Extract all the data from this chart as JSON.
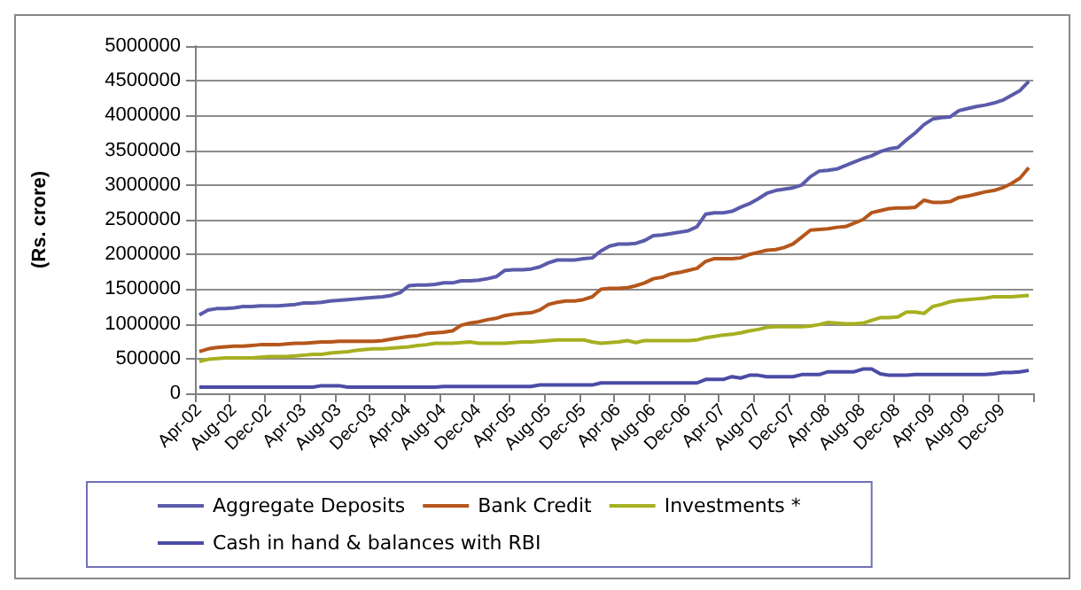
{
  "chart_data": {
    "type": "line",
    "ylabel": "(Rs. crore)",
    "categories": [
      "Apr-02",
      null,
      null,
      null,
      "Aug-02",
      null,
      null,
      null,
      "Dec-02",
      null,
      null,
      null,
      "Apr-03",
      null,
      null,
      null,
      "Aug-03",
      null,
      null,
      null,
      "Dec-03",
      null,
      null,
      null,
      "Apr-04",
      null,
      null,
      null,
      "Aug-04",
      null,
      null,
      null,
      "Dec-04",
      null,
      null,
      null,
      "Apr-05",
      null,
      null,
      null,
      "Aug-05",
      null,
      null,
      null,
      "Dec-05",
      null,
      null,
      null,
      "Apr-06",
      null,
      null,
      null,
      "Aug-06",
      null,
      null,
      null,
      "Dec-06",
      null,
      null,
      null,
      "Apr-07",
      null,
      null,
      null,
      "Aug-07",
      null,
      null,
      null,
      "Dec-07",
      null,
      null,
      null,
      "Apr-08",
      null,
      null,
      null,
      "Aug-08",
      null,
      null,
      null,
      "Dec-08",
      null,
      null,
      null,
      "Apr-09",
      null,
      null,
      null,
      "Aug-09",
      null,
      null,
      null,
      "Dec-09",
      null,
      null,
      null
    ],
    "series": [
      {
        "name": "Aggregate Deposits",
        "color": "#5b5bab",
        "values": [
          1130000,
          1200000,
          1220000,
          1220000,
          1230000,
          1250000,
          1250000,
          1260000,
          1260000,
          1260000,
          1270000,
          1280000,
          1300000,
          1300000,
          1310000,
          1330000,
          1340000,
          1350000,
          1360000,
          1370000,
          1380000,
          1390000,
          1410000,
          1450000,
          1550000,
          1560000,
          1560000,
          1570000,
          1590000,
          1590000,
          1620000,
          1620000,
          1630000,
          1650000,
          1680000,
          1770000,
          1780000,
          1780000,
          1790000,
          1820000,
          1880000,
          1920000,
          1920000,
          1920000,
          1940000,
          1950000,
          2050000,
          2120000,
          2150000,
          2150000,
          2160000,
          2200000,
          2270000,
          2280000,
          2300000,
          2320000,
          2340000,
          2400000,
          2580000,
          2600000,
          2600000,
          2620000,
          2680000,
          2730000,
          2800000,
          2880000,
          2920000,
          2940000,
          2960000,
          3000000,
          3120000,
          3200000,
          3210000,
          3230000,
          3280000,
          3330000,
          3380000,
          3420000,
          3480000,
          3520000,
          3540000,
          3650000,
          3750000,
          3870000,
          3950000,
          3970000,
          3980000,
          4070000,
          4100000,
          4130000,
          4150000,
          4180000,
          4220000,
          4290000,
          4360000,
          4490000
        ]
      },
      {
        "name": "Bank Credit",
        "color": "#b5561c",
        "values": [
          600000,
          640000,
          660000,
          670000,
          680000,
          680000,
          690000,
          700000,
          700000,
          700000,
          710000,
          720000,
          720000,
          730000,
          740000,
          740000,
          750000,
          750000,
          750000,
          750000,
          750000,
          760000,
          780000,
          800000,
          820000,
          830000,
          860000,
          870000,
          880000,
          900000,
          980000,
          1010000,
          1030000,
          1060000,
          1080000,
          1120000,
          1140000,
          1150000,
          1160000,
          1200000,
          1280000,
          1310000,
          1330000,
          1330000,
          1350000,
          1390000,
          1500000,
          1510000,
          1510000,
          1520000,
          1550000,
          1590000,
          1650000,
          1670000,
          1720000,
          1740000,
          1770000,
          1800000,
          1900000,
          1940000,
          1940000,
          1940000,
          1950000,
          2000000,
          2030000,
          2060000,
          2070000,
          2100000,
          2150000,
          2250000,
          2350000,
          2360000,
          2370000,
          2390000,
          2400000,
          2450000,
          2500000,
          2600000,
          2630000,
          2660000,
          2670000,
          2670000,
          2680000,
          2780000,
          2750000,
          2750000,
          2760000,
          2820000,
          2840000,
          2870000,
          2900000,
          2920000,
          2960000,
          3020000,
          3100000,
          3250000
        ]
      },
      {
        "name": "Investments *",
        "color": "#a6b020",
        "values": [
          460000,
          490000,
          500000,
          510000,
          510000,
          510000,
          510000,
          520000,
          530000,
          530000,
          530000,
          540000,
          550000,
          560000,
          560000,
          580000,
          590000,
          600000,
          620000,
          630000,
          640000,
          640000,
          650000,
          660000,
          670000,
          690000,
          700000,
          720000,
          720000,
          720000,
          730000,
          740000,
          720000,
          720000,
          720000,
          720000,
          730000,
          740000,
          740000,
          750000,
          760000,
          770000,
          770000,
          770000,
          770000,
          740000,
          720000,
          730000,
          740000,
          760000,
          730000,
          760000,
          760000,
          760000,
          760000,
          760000,
          760000,
          770000,
          800000,
          820000,
          840000,
          850000,
          870000,
          900000,
          920000,
          950000,
          960000,
          960000,
          960000,
          960000,
          970000,
          990000,
          1020000,
          1010000,
          1000000,
          1000000,
          1010000,
          1050000,
          1090000,
          1090000,
          1100000,
          1170000,
          1170000,
          1150000,
          1250000,
          1280000,
          1320000,
          1340000,
          1350000,
          1360000,
          1370000,
          1390000,
          1390000,
          1390000,
          1400000,
          1410000
        ]
      },
      {
        "name": "Cash in hand & balances with RBI",
        "color": "#4b4ba6",
        "values": [
          90000,
          90000,
          90000,
          90000,
          90000,
          90000,
          90000,
          90000,
          90000,
          90000,
          90000,
          90000,
          90000,
          90000,
          110000,
          110000,
          110000,
          90000,
          90000,
          90000,
          90000,
          90000,
          90000,
          90000,
          90000,
          90000,
          90000,
          90000,
          100000,
          100000,
          100000,
          100000,
          100000,
          100000,
          100000,
          100000,
          100000,
          100000,
          100000,
          120000,
          120000,
          120000,
          120000,
          120000,
          120000,
          120000,
          150000,
          150000,
          150000,
          150000,
          150000,
          150000,
          150000,
          150000,
          150000,
          150000,
          150000,
          150000,
          200000,
          200000,
          200000,
          240000,
          220000,
          260000,
          260000,
          240000,
          240000,
          240000,
          240000,
          270000,
          270000,
          270000,
          310000,
          310000,
          310000,
          310000,
          350000,
          350000,
          280000,
          260000,
          260000,
          260000,
          270000,
          270000,
          270000,
          270000,
          270000,
          270000,
          270000,
          270000,
          270000,
          280000,
          300000,
          300000,
          310000,
          330000
        ]
      }
    ],
    "ylim": [
      0,
      5000000
    ],
    "yticks": [
      0,
      500000,
      1000000,
      1500000,
      2000000,
      2500000,
      3000000,
      3500000,
      4000000,
      4500000,
      5000000
    ],
    "grid": "y",
    "legend": "bottom",
    "marker": "none",
    "line_style": "solid"
  }
}
